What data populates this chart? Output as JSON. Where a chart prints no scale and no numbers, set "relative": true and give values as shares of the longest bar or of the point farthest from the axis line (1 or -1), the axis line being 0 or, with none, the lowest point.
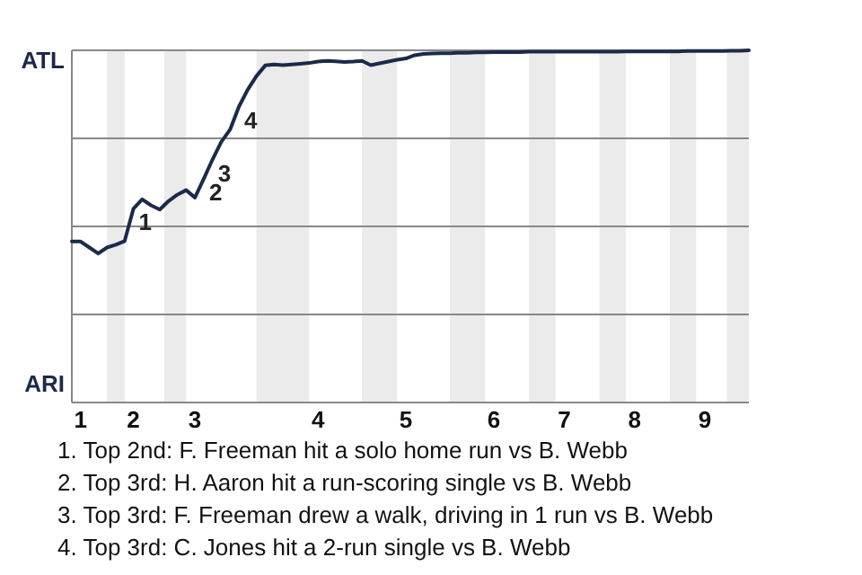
{
  "chart_data": {
    "type": "line",
    "relative": true,
    "categories": [
      null,
      "1",
      null,
      null,
      null,
      null,
      null,
      "2",
      null,
      null,
      null,
      null,
      null,
      null,
      "3",
      null,
      null,
      null,
      null,
      null,
      null,
      null,
      null,
      null,
      null,
      null,
      null,
      null,
      "4",
      null,
      null,
      null,
      null,
      null,
      null,
      null,
      null,
      null,
      "5",
      null,
      null,
      null,
      null,
      null,
      null,
      null,
      null,
      null,
      "6",
      null,
      null,
      null,
      null,
      null,
      null,
      null,
      "7",
      null,
      null,
      null,
      null,
      null,
      null,
      null,
      "8",
      null,
      null,
      null,
      null,
      null,
      null,
      null,
      "9",
      null,
      null,
      null,
      null,
      null
    ],
    "grid": "y",
    "marker": "none",
    "line_style": "solid",
    "series": [
      {
        "color": "#1c2a4a",
        "values": [
          0.457,
          0.457,
          0.44,
          0.423,
          0.44,
          0.448,
          0.458,
          0.55,
          0.577,
          0.56,
          0.548,
          0.572,
          0.59,
          0.603,
          0.582,
          0.635,
          0.69,
          0.74,
          0.775,
          0.84,
          0.888,
          0.927,
          0.957,
          0.96,
          0.958,
          0.96,
          0.962,
          0.964,
          0.968,
          0.97,
          0.969,
          0.967,
          0.968,
          0.97,
          0.958,
          0.963,
          0.968,
          0.973,
          0.977,
          0.986,
          0.99,
          0.991,
          0.992,
          0.992,
          0.993,
          0.993,
          0.994,
          0.994,
          0.995,
          0.995,
          0.995,
          0.995,
          0.996,
          0.996,
          0.996,
          0.996,
          0.996,
          0.996,
          0.996,
          0.996,
          0.996,
          0.996,
          0.996,
          0.997,
          0.997,
          0.997,
          0.997,
          0.997,
          0.997,
          0.997,
          0.998,
          0.998,
          0.998,
          0.998,
          0.998,
          0.999,
          0.999,
          1
        ]
      }
    ],
    "annotations": [
      "ATL",
      "ARI",
      "1",
      "2",
      "3",
      "4",
      "1. Top 2nd: F. Freeman hit a solo home run vs B. Webb",
      "2. Top 3rd: H. Aaron hit a run-scoring single vs B. Webb",
      "3. Top 3rd: F. Freeman drew a walk, driving in 1 run vs B. Webb",
      "4. Top 3rd: C. Jones hit a 2-run single vs B. Webb"
    ]
  }
}
